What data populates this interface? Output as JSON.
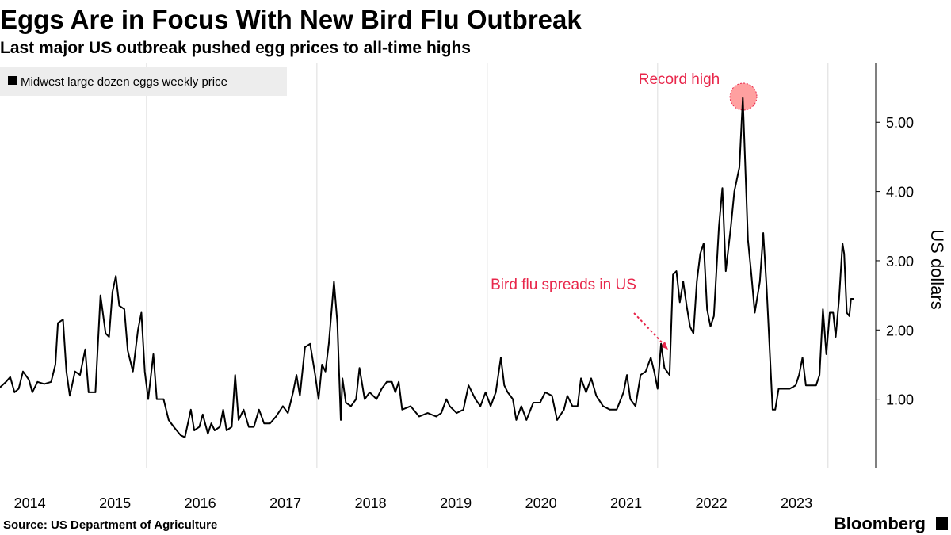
{
  "chart_data": {
    "type": "line",
    "title": "Eggs Are in Focus With New Bird Flu Outbreak",
    "subtitle": "Last major US outbreak pushed egg prices to all-time highs",
    "y_label": "US dollars",
    "source": "Source: US Department of Agriculture",
    "brand": "Bloomberg",
    "annotations": [
      "Record high",
      "Bird flu spreads in US"
    ],
    "xlim": [
      2014.28,
      2024.56
    ],
    "xticks": [
      {
        "value": 2014.5,
        "label": "2014"
      },
      {
        "value": 2015.5,
        "label": "2015"
      },
      {
        "value": 2016.5,
        "label": "2016"
      },
      {
        "value": 2017.5,
        "label": "2017"
      },
      {
        "value": 2018.5,
        "label": "2018"
      },
      {
        "value": 2019.5,
        "label": "2019"
      },
      {
        "value": 2020.5,
        "label": "2020"
      },
      {
        "value": 2021.5,
        "label": "2021"
      },
      {
        "value": 2022.5,
        "label": "2022"
      },
      {
        "value": 2023.5,
        "label": "2023"
      }
    ],
    "xgrid": [
      2016,
      2018,
      2020,
      2022,
      2024
    ],
    "ylim": [
      0,
      5.85
    ],
    "yticks": [
      {
        "value": 1,
        "label": "1.00"
      },
      {
        "value": 2,
        "label": "2.00"
      },
      {
        "value": 3,
        "label": "3.00"
      },
      {
        "value": 4,
        "label": "4.00"
      },
      {
        "value": 5,
        "label": "5.00"
      }
    ],
    "x": [
      2014.28,
      2014.35,
      2014.4,
      2014.45,
      2014.5,
      2014.55,
      2014.62,
      2014.66,
      2014.72,
      2014.8,
      2014.88,
      2014.93,
      2014.96,
      2015.02,
      2015.06,
      2015.1,
      2015.16,
      2015.22,
      2015.28,
      2015.32,
      2015.4,
      2015.46,
      2015.52,
      2015.56,
      2015.6,
      2015.64,
      2015.68,
      2015.74,
      2015.78,
      2015.84,
      2015.9,
      2015.94,
      2015.98,
      2016.02,
      2016.08,
      2016.12,
      2016.2,
      2016.26,
      2016.32,
      2016.4,
      2016.45,
      2016.52,
      2016.56,
      2016.62,
      2016.66,
      2016.72,
      2016.76,
      2016.8,
      2016.86,
      2016.9,
      2016.94,
      2017.0,
      2017.04,
      2017.08,
      2017.14,
      2017.2,
      2017.26,
      2017.32,
      2017.38,
      2017.45,
      2017.52,
      2017.6,
      2017.66,
      2017.72,
      2017.76,
      2017.8,
      2017.86,
      2017.92,
      2017.98,
      2018.02,
      2018.06,
      2018.1,
      2018.14,
      2018.2,
      2018.24,
      2018.28,
      2018.3,
      2018.34,
      2018.4,
      2018.46,
      2018.5,
      2018.56,
      2018.62,
      2018.7,
      2018.76,
      2018.82,
      2018.88,
      2018.92,
      2018.96,
      2019.0,
      2019.1,
      2019.2,
      2019.3,
      2019.4,
      2019.46,
      2019.52,
      2019.56,
      2019.64,
      2019.72,
      2019.78,
      2019.86,
      2019.92,
      2019.98,
      2020.04,
      2020.1,
      2020.16,
      2020.2,
      2020.24,
      2020.3,
      2020.34,
      2020.4,
      2020.46,
      2020.54,
      2020.62,
      2020.68,
      2020.76,
      2020.82,
      2020.9,
      2020.94,
      2021.0,
      2021.06,
      2021.1,
      2021.16,
      2021.22,
      2021.28,
      2021.36,
      2021.44,
      2021.52,
      2021.6,
      2021.64,
      2021.68,
      2021.74,
      2021.8,
      2021.86,
      2021.92,
      2021.96,
      2022.0,
      2022.04,
      2022.08,
      2022.14,
      2022.18,
      2022.22,
      2022.26,
      2022.3,
      2022.34,
      2022.38,
      2022.42,
      2022.46,
      2022.5,
      2022.54,
      2022.58,
      2022.62,
      2022.66,
      2022.72,
      2022.76,
      2022.8,
      2022.86,
      2022.9,
      2022.96,
      2023.0,
      2023.06,
      2023.1,
      2023.14,
      2023.2,
      2023.24,
      2023.28,
      2023.32,
      2023.35,
      2023.38,
      2023.42,
      2023.55,
      2023.62,
      2023.66,
      2023.7,
      2023.74,
      2023.86,
      2023.9,
      2023.94,
      2023.98,
      2024.02,
      2024.06,
      2024.09,
      2024.13,
      2024.17,
      2024.19,
      2024.22,
      2024.25,
      2024.27,
      2024.3
    ],
    "series": [
      {
        "name": "Midwest large dozen eggs weekly price",
        "color": "#000000",
        "values": [
          1.17,
          1.25,
          1.32,
          1.1,
          1.15,
          1.4,
          1.28,
          1.1,
          1.25,
          1.22,
          1.25,
          1.5,
          2.1,
          2.15,
          1.4,
          1.05,
          1.4,
          1.35,
          1.72,
          1.1,
          1.1,
          2.5,
          1.95,
          1.9,
          2.55,
          2.78,
          2.35,
          2.3,
          1.7,
          1.4,
          2.0,
          2.25,
          1.4,
          1.0,
          1.65,
          1.0,
          1.0,
          0.7,
          0.6,
          0.48,
          0.45,
          0.85,
          0.55,
          0.6,
          0.78,
          0.5,
          0.65,
          0.55,
          0.6,
          0.85,
          0.55,
          0.6,
          1.35,
          0.7,
          0.85,
          0.6,
          0.6,
          0.85,
          0.65,
          0.65,
          0.75,
          0.9,
          0.8,
          1.1,
          1.35,
          1.05,
          1.75,
          1.8,
          1.35,
          1.0,
          1.5,
          1.4,
          1.8,
          2.7,
          2.1,
          0.7,
          1.3,
          0.95,
          0.9,
          1.0,
          1.45,
          1.0,
          1.1,
          1.0,
          1.15,
          1.25,
          1.25,
          1.1,
          1.25,
          0.85,
          0.9,
          0.75,
          0.8,
          0.75,
          0.8,
          1.0,
          0.9,
          0.8,
          0.85,
          1.2,
          1.0,
          0.9,
          1.1,
          0.9,
          1.1,
          1.6,
          1.2,
          1.1,
          1.0,
          0.7,
          0.9,
          0.7,
          0.95,
          0.95,
          1.1,
          1.05,
          0.7,
          0.85,
          1.05,
          0.9,
          0.9,
          1.3,
          1.1,
          1.3,
          1.05,
          0.9,
          0.85,
          0.85,
          1.1,
          1.35,
          1.0,
          0.9,
          1.35,
          1.4,
          1.6,
          1.4,
          1.15,
          1.8,
          1.45,
          1.35,
          2.8,
          2.85,
          2.4,
          2.7,
          2.35,
          2.05,
          1.95,
          2.7,
          3.1,
          3.25,
          2.3,
          2.05,
          2.2,
          3.5,
          4.05,
          2.85,
          3.5,
          4.0,
          4.35,
          5.35,
          3.3,
          2.8,
          2.25,
          2.7,
          3.4,
          2.6,
          1.6,
          0.85,
          0.85,
          1.15,
          1.15,
          1.2,
          1.35,
          1.6,
          1.2,
          1.2,
          1.35,
          2.3,
          1.65,
          2.25,
          2.25,
          1.9,
          2.45,
          3.25,
          3.1,
          2.25,
          2.2,
          2.45,
          2.45
        ]
      }
    ]
  }
}
